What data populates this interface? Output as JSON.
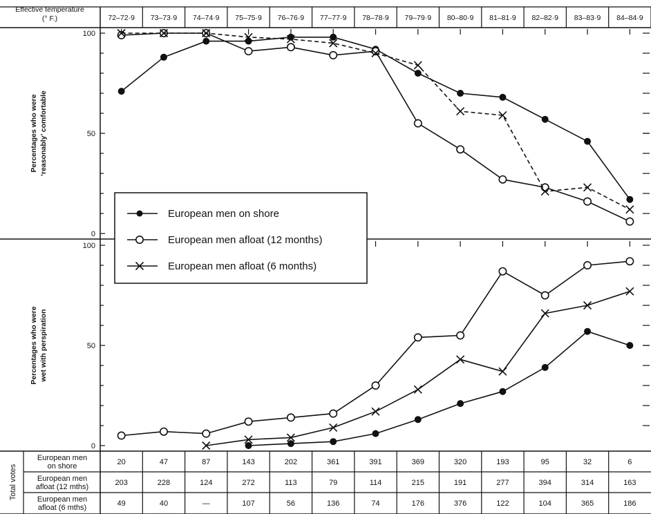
{
  "chart_data": {
    "type": "line",
    "header_label": "Effective temperature (° F.)",
    "categories": [
      "72–72·9",
      "73–73·9",
      "74–74·9",
      "75–75·9",
      "76–76·9",
      "77–77·9",
      "78–78·9",
      "79–79·9",
      "80–80·9",
      "81–81·9",
      "82–82·9",
      "83–83·9",
      "84–84·9"
    ],
    "ylim": [
      0,
      100
    ],
    "y_ticks": [
      "0",
      "50",
      "100"
    ],
    "legend": [
      {
        "label": "European men on shore",
        "marker": "filled-circle"
      },
      {
        "label": "European men afloat (12 months)",
        "marker": "open-circle"
      },
      {
        "label": "European men afloat (6 months)",
        "marker": "cross"
      }
    ],
    "panels": [
      {
        "ylabel_line1": "Percentages who were",
        "ylabel_line2": "‘reasonably’ comfortable",
        "series": [
          {
            "marker": "filled-circle",
            "values": [
              71,
              88,
              96,
              96,
              98,
              98,
              92,
              80,
              70,
              68,
              57,
              46,
              17
            ]
          },
          {
            "marker": "open-circle",
            "values": [
              99,
              100,
              100,
              91,
              93,
              89,
              91,
              55,
              42,
              27,
              23,
              16,
              6
            ]
          },
          {
            "marker": "cross",
            "values": [
              100,
              100,
              100,
              98,
              97,
              95,
              90,
              84,
              61,
              59,
              21,
              23,
              12
            ]
          }
        ]
      },
      {
        "ylabel_line1": "Percentages who were",
        "ylabel_line2": "wet with perspiration",
        "series": [
          {
            "marker": "filled-circle",
            "values": [
              null,
              null,
              null,
              0,
              1,
              2,
              6,
              13,
              21,
              27,
              39,
              57,
              50
            ]
          },
          {
            "marker": "open-circle",
            "values": [
              5,
              7,
              6,
              12,
              14,
              16,
              30,
              54,
              55,
              87,
              75,
              90,
              92
            ]
          },
          {
            "marker": "cross",
            "values": [
              null,
              null,
              0,
              3,
              4,
              9,
              17,
              28,
              43,
              37,
              66,
              70,
              77
            ]
          }
        ]
      }
    ],
    "votes_table": {
      "side_label": "Total votes",
      "rows": [
        {
          "label_line1": "European men",
          "label_line2": "on shore",
          "values": [
            "20",
            "47",
            "87",
            "143",
            "202",
            "361",
            "391",
            "369",
            "320",
            "193",
            "95",
            "32",
            "6"
          ]
        },
        {
          "label_line1": "European men",
          "label_line2": "afloat (12 mths)",
          "values": [
            "203",
            "228",
            "124",
            "272",
            "113",
            "79",
            "114",
            "215",
            "191",
            "277",
            "394",
            "314",
            "163"
          ]
        },
        {
          "label_line1": "European men",
          "label_line2": "afloat (6 mths)",
          "values": [
            "49",
            "40",
            "—",
            "107",
            "56",
            "136",
            "74",
            "176",
            "376",
            "122",
            "104",
            "365",
            "186"
          ]
        }
      ]
    }
  }
}
